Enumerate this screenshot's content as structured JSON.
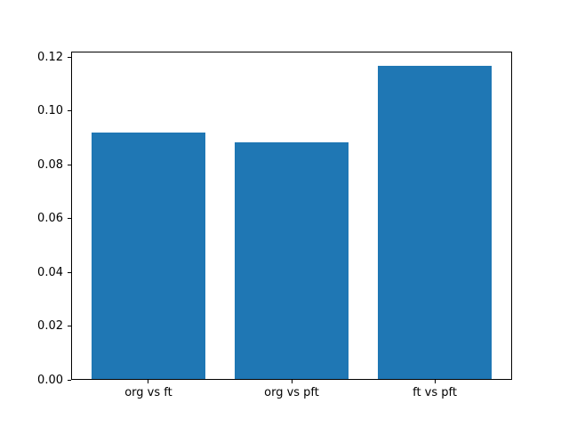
{
  "chart_data": {
    "type": "bar",
    "title": "",
    "xlabel": "",
    "ylabel": "",
    "categories": [
      "org vs ft",
      "org vs pft",
      "ft vs pft"
    ],
    "values": [
      0.0915,
      0.0878,
      0.1163
    ],
    "bar_color": "#1f77b4",
    "bar_width": 0.8,
    "xlim": [
      -0.54,
      2.54
    ],
    "ylim": [
      0,
      0.122
    ],
    "ytick_values": [
      0.0,
      0.02,
      0.04,
      0.06,
      0.08,
      0.1,
      0.12
    ],
    "ytick_labels": [
      "0.00",
      "0.02",
      "0.04",
      "0.06",
      "0.08",
      "0.10",
      "0.12"
    ],
    "grid": false,
    "legend": false,
    "background_color": "#ffffff",
    "spine_color": "#000000"
  }
}
